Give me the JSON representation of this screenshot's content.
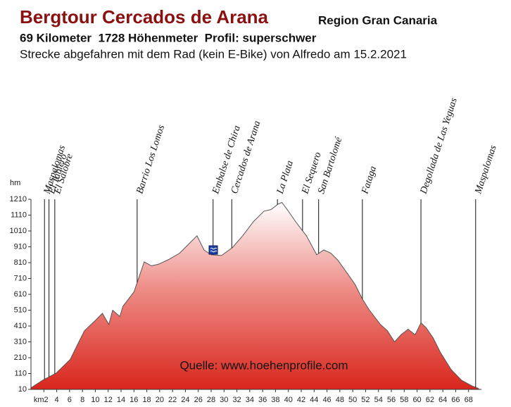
{
  "chart_data": {
    "type": "area",
    "title": "Bergtour Cercados de Arana",
    "subtitle": "Region Gran Canaria",
    "info": "69 Kilometer  1728 Höhenmeter  Profil: superschwer",
    "description": "Strecke abgefahren mit dem Rad (kein E-Bike) von Alfredo am 15.2.2021",
    "y_label": "hm",
    "source": "Quelle: www.hoehenprofile.com",
    "color": "#d9261c",
    "x": [
      0,
      1.8,
      3.9,
      6.1,
      7.2,
      8.3,
      10.0,
      11.1,
      12.1,
      12.7,
      13.8,
      14.3,
      16.0,
      17.1,
      17.6,
      18.7,
      19.8,
      21.4,
      23.1,
      24.7,
      25.8,
      26.9,
      28.0,
      29.6,
      31.3,
      32.9,
      34.6,
      36.2,
      37.3,
      38.4,
      39.0,
      40.0,
      41.1,
      42.8,
      44.4,
      45.5,
      46.6,
      47.7,
      49.3,
      50.4,
      51.5,
      52.6,
      54.3,
      55.4,
      56.5,
      57.5,
      58.6,
      59.7,
      60.6,
      61.4,
      62.5,
      63.6,
      65.3,
      66.9,
      68.5,
      69.6
    ],
    "values": [
      20,
      68,
      112,
      200,
      290,
      380,
      445,
      490,
      420,
      510,
      470,
      535,
      625,
      755,
      815,
      790,
      800,
      830,
      870,
      935,
      980,
      890,
      860,
      855,
      905,
      980,
      1070,
      1135,
      1145,
      1180,
      1190,
      1135,
      1070,
      980,
      860,
      890,
      870,
      825,
      735,
      670,
      580,
      510,
      420,
      380,
      310,
      355,
      390,
      355,
      430,
      400,
      335,
      245,
      135,
      68,
      32,
      15
    ],
    "xlim": [
      0,
      70
    ],
    "ylim": [
      10,
      1210
    ],
    "yticks": [
      10,
      110,
      210,
      310,
      410,
      510,
      610,
      710,
      810,
      910,
      1010,
      1110,
      1210
    ],
    "xticks": [
      {
        "value": 2,
        "label": "km2"
      },
      4,
      6,
      8,
      10,
      12,
      14,
      16,
      18,
      20,
      22,
      24,
      26,
      28,
      30,
      32,
      34,
      36,
      38,
      40,
      42,
      44,
      46,
      48,
      50,
      52,
      54,
      56,
      58,
      60,
      62,
      64,
      66,
      68
    ],
    "places": [
      {
        "label": "Maspalomas",
        "x": 2.1
      },
      {
        "label": "El Tablero",
        "x": 2.8
      },
      {
        "label": "El Salobre",
        "x": 3.7
      },
      {
        "label": "Barrio Los Lomos",
        "x": 16.5
      },
      {
        "label": "Embalse de Chira",
        "x": 28.3
      },
      {
        "label": "Cercados de Arana",
        "x": 31.2
      },
      {
        "label": "La Plata",
        "x": 38.3
      },
      {
        "label": "El Sequero",
        "x": 42.2
      },
      {
        "label": "San Bartolomé",
        "x": 44.7
      },
      {
        "label": "Fataga",
        "x": 51.5
      },
      {
        "label": "Degollada de Las Yeguas",
        "x": 60.6
      },
      {
        "label": "Maspalomas",
        "x": 69.1
      }
    ]
  }
}
